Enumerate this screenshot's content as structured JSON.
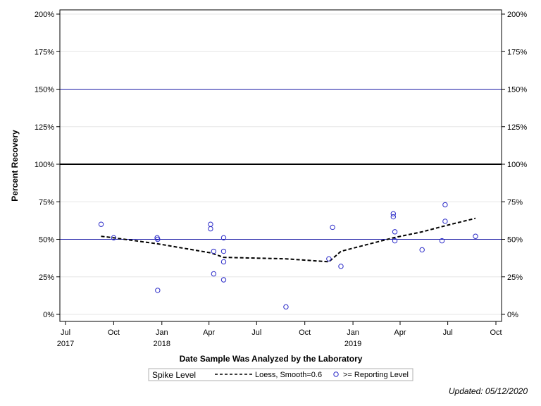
{
  "chart_data": {
    "type": "scatter",
    "xlabel": "Date Sample Was Analyzed by the Laboratory",
    "ylabel": "Percent Recovery",
    "y_ticks": [
      "0%",
      "25%",
      "50%",
      "75%",
      "100%",
      "125%",
      "150%",
      "175%",
      "200%"
    ],
    "ylim": [
      0,
      200
    ],
    "xlim": [
      "2017-07-01",
      "2019-10-01"
    ],
    "x_ticks": [
      {
        "date": "2017-07-01",
        "label": "Jul",
        "year": "2017"
      },
      {
        "date": "2017-10-01",
        "label": "Oct",
        "year": ""
      },
      {
        "date": "2018-01-01",
        "label": "Jan",
        "year": "2018"
      },
      {
        "date": "2018-04-01",
        "label": "Apr",
        "year": ""
      },
      {
        "date": "2018-07-01",
        "label": "Jul",
        "year": ""
      },
      {
        "date": "2018-10-01",
        "label": "Oct",
        "year": ""
      },
      {
        "date": "2019-01-01",
        "label": "Jan",
        "year": "2019"
      },
      {
        "date": "2019-04-01",
        "label": "Apr",
        "year": ""
      },
      {
        "date": "2019-07-01",
        "label": "Jul",
        "year": ""
      },
      {
        "date": "2019-10-01",
        "label": "Oct",
        "year": ""
      }
    ],
    "grid": true,
    "reference_lines": [
      {
        "y": 100,
        "color": "#000000",
        "style": "bold"
      },
      {
        "y": 150,
        "color": "#1a1aa6",
        "style": "thin"
      },
      {
        "y": 50,
        "color": "#1a1aa6",
        "style": "thin"
      }
    ],
    "series": [
      {
        "name": ">= Reporting Level",
        "marker": "open-circle",
        "color": "#2b2bc8",
        "points": [
          {
            "x": "2017-09-07",
            "y": 60
          },
          {
            "x": "2017-10-01",
            "y": 51
          },
          {
            "x": "2017-12-23",
            "y": 51
          },
          {
            "x": "2017-12-24",
            "y": 50
          },
          {
            "x": "2017-12-24",
            "y": 16
          },
          {
            "x": "2018-04-04",
            "y": 60
          },
          {
            "x": "2018-04-04",
            "y": 57
          },
          {
            "x": "2018-04-10",
            "y": 42
          },
          {
            "x": "2018-04-10",
            "y": 27
          },
          {
            "x": "2018-04-29",
            "y": 51
          },
          {
            "x": "2018-04-29",
            "y": 42
          },
          {
            "x": "2018-04-29",
            "y": 35
          },
          {
            "x": "2018-04-29",
            "y": 23
          },
          {
            "x": "2018-08-26",
            "y": 5
          },
          {
            "x": "2018-11-16",
            "y": 37
          },
          {
            "x": "2018-11-23",
            "y": 58
          },
          {
            "x": "2018-12-09",
            "y": 32
          },
          {
            "x": "2019-03-19",
            "y": 67
          },
          {
            "x": "2019-03-19",
            "y": 65
          },
          {
            "x": "2019-03-22",
            "y": 55
          },
          {
            "x": "2019-03-22",
            "y": 49
          },
          {
            "x": "2019-05-13",
            "y": 43
          },
          {
            "x": "2019-06-20",
            "y": 49
          },
          {
            "x": "2019-06-26",
            "y": 73
          },
          {
            "x": "2019-06-26",
            "y": 62
          },
          {
            "x": "2019-08-23",
            "y": 52
          }
        ]
      },
      {
        "name": "Loess, Smooth=0.6",
        "style": "dashed",
        "color": "#000000",
        "points": [
          {
            "x": "2017-09-07",
            "y": 52
          },
          {
            "x": "2017-10-01",
            "y": 51
          },
          {
            "x": "2017-12-24",
            "y": 47
          },
          {
            "x": "2018-04-04",
            "y": 41
          },
          {
            "x": "2018-04-29",
            "y": 38
          },
          {
            "x": "2018-08-26",
            "y": 37
          },
          {
            "x": "2018-11-16",
            "y": 35
          },
          {
            "x": "2018-12-09",
            "y": 42
          },
          {
            "x": "2019-03-19",
            "y": 51
          },
          {
            "x": "2019-05-13",
            "y": 55
          },
          {
            "x": "2019-06-26",
            "y": 59
          },
          {
            "x": "2019-08-23",
            "y": 64
          }
        ]
      }
    ],
    "legend": {
      "title": "Spike Level",
      "placement": "bottom",
      "entries": [
        {
          "label": "Loess, Smooth=0.6",
          "kind": "dashed-line"
        },
        {
          "label": ">= Reporting Level",
          "kind": "open-circle"
        }
      ]
    }
  },
  "footer": {
    "updated": "Updated: 05/12/2020"
  }
}
